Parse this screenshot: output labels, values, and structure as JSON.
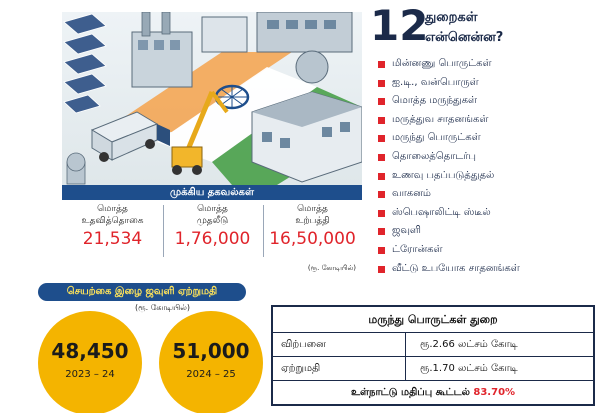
{
  "sectors": {
    "count": "12",
    "title_line1": "துறைகள்",
    "title_line2": "என்னென்ன?",
    "items": [
      "மின்னணு பொருட்கள்",
      "ஐ.டி., வன்பொருள்",
      "மொத்த மருந்துகள்",
      "மருத்துவ சாதனங்கள்",
      "மருந்து பொருட்கள்",
      "தொலைத்தொடர்பு",
      "உணவு பதப்படுத்துதல்",
      "வாகனம்",
      "ஸ்பெஷாலிட்டி ஸ்டீல்",
      "ஜவுளி",
      "ட்ரோன்கள்",
      "வீட்டு உபயோக சாதனங்கள்"
    ]
  },
  "key_info": {
    "title": "முக்கிய தகவல்கள்",
    "stats": [
      {
        "label_line1": "மொத்த",
        "label_line2": "உதவித்தொகை",
        "value": "21,534"
      },
      {
        "label_line1": "மொத்த",
        "label_line2": "முதலீடு",
        "value": "1,76,000"
      },
      {
        "label_line1": "மொத்த",
        "label_line2": "உற்பத்தி",
        "value": "16,50,000"
      }
    ],
    "unit": "(ரூ. கோடியில்)"
  },
  "textile_export": {
    "title": "செயற்கை இழை ஜவுளி ஏற்றுமதி",
    "unit": "(ரூ. கோடியில்)",
    "circles": [
      {
        "value": "48,450",
        "year": "2023 – 24"
      },
      {
        "value": "51,000",
        "year": "2024 – 25"
      }
    ]
  },
  "pharma": {
    "title": "மருந்து பொருட்கள் துறை",
    "rows": [
      {
        "label": "விற்பனை",
        "value": "ரூ.2.66 லட்சம் கோடி"
      },
      {
        "label": "ஏற்றுமதி",
        "value": "ரூ.1.70 லட்சம் கோடி"
      }
    ],
    "footer_text": "உள்நாட்டு மதிப்பு கூட்டல்",
    "footer_pct": "83.70%"
  },
  "colors": {
    "navy": "#1e4e8c",
    "red": "#e0242b",
    "gold": "#f4b400",
    "ink": "#1b2a49"
  },
  "illustration": {
    "icons": [
      "factory-icon",
      "solar-panel-icon",
      "truck-icon",
      "crane-icon",
      "ashoka-chakra-icon"
    ]
  }
}
